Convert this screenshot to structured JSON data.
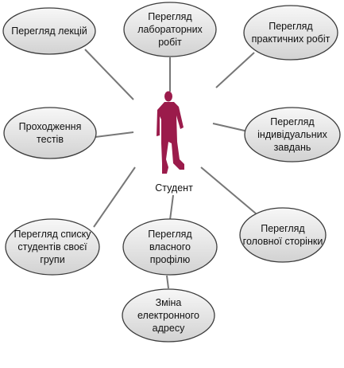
{
  "actor": {
    "label": "Студент",
    "color": "#9b1b4b"
  },
  "use_cases": [
    {
      "id": "lectures",
      "lines": [
        "Перегляд лекцій"
      ]
    },
    {
      "id": "labs",
      "lines": [
        "Перегляд",
        "лабораторних",
        "робіт"
      ]
    },
    {
      "id": "practical",
      "lines": [
        "Перегляд",
        "практичних робіт"
      ]
    },
    {
      "id": "tests",
      "lines": [
        "Проходження",
        "тестів"
      ]
    },
    {
      "id": "individual",
      "lines": [
        "Перегляд",
        "індивідуальних",
        "завдань"
      ]
    },
    {
      "id": "group-list",
      "lines": [
        "Перегляд списку",
        "студентів своєї",
        "групи"
      ]
    },
    {
      "id": "own-profile",
      "lines": [
        "Перегляд",
        "власного",
        "профілю"
      ]
    },
    {
      "id": "main-page",
      "lines": [
        "Перегляд",
        "головної сторінки"
      ]
    },
    {
      "id": "change-email",
      "lines": [
        "Зміна",
        "електронного",
        "адресу"
      ]
    }
  ],
  "colors": {
    "ellipse_fill_top": "#f7f7f7",
    "ellipse_fill_bottom": "#d4d4d4",
    "ellipse_stroke": "#3c3c3c",
    "connector": "#777777"
  }
}
